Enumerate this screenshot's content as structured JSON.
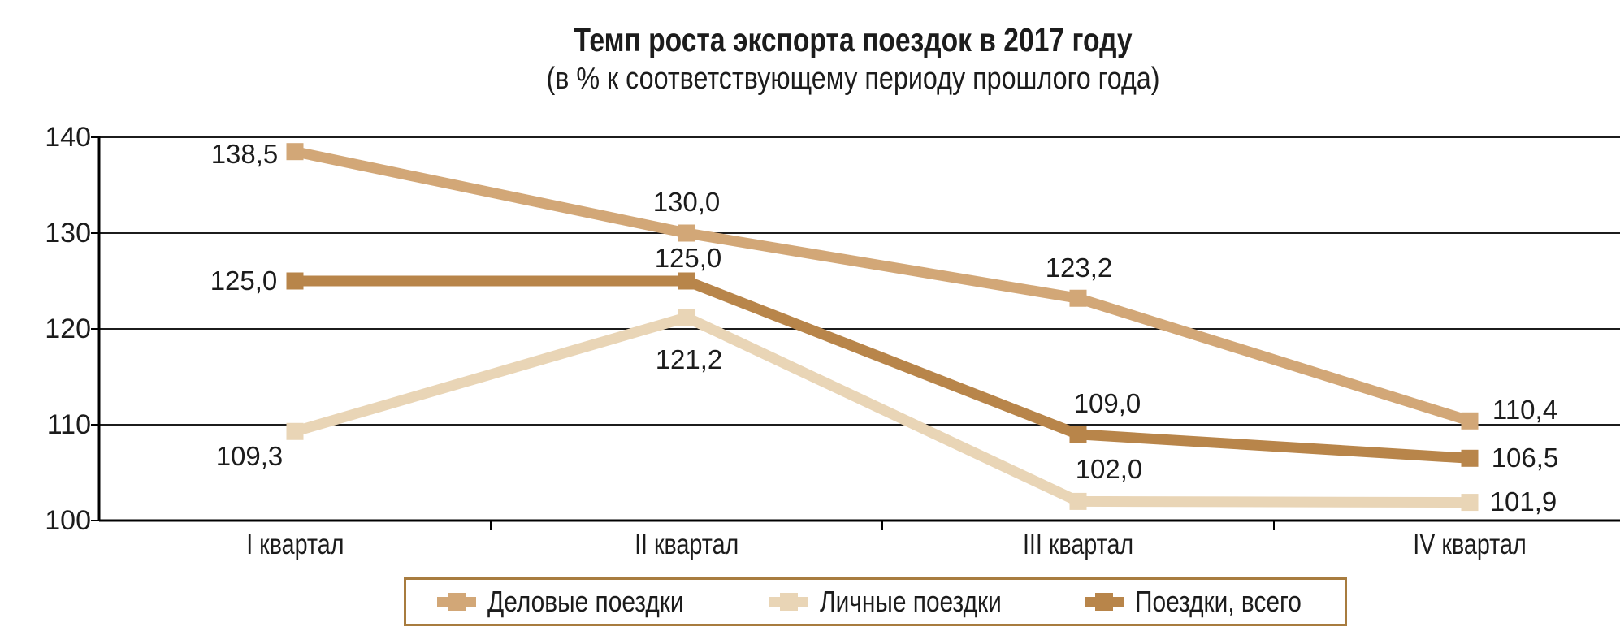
{
  "chart_data": {
    "type": "line",
    "title": "Темп роста экспорта поездок в 2017 году",
    "subtitle": "(в % к соответствующему периоду прошлого года)",
    "categories": [
      "I квартал",
      "II квартал",
      "III квартал",
      "IV квартал"
    ],
    "series": [
      {
        "name": "Деловые поездки",
        "values": [
          138.5,
          130.0,
          123.2,
          110.4
        ],
        "color": "#D2A777"
      },
      {
        "name": "Личные поездки",
        "values": [
          109.3,
          121.2,
          102.0,
          101.9
        ],
        "color": "#E9D5B6"
      },
      {
        "name": "Поездки, всего",
        "values": [
          125.0,
          125.0,
          109.0,
          106.5
        ],
        "color": "#B8854A"
      }
    ],
    "y_ticks": [
      140,
      130,
      120,
      110,
      100
    ],
    "ylim": [
      100,
      140
    ],
    "grid": "horizontal",
    "legend_position": "bottom",
    "decimal_separator": ",",
    "colors": {
      "grid": "#1c1c1c",
      "axis": "#000000",
      "text": "#1a1a1a",
      "legend_border": "#A87C3F",
      "background": "#ffffff"
    }
  }
}
